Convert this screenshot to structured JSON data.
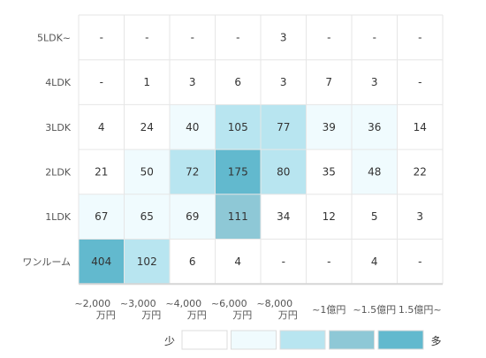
{
  "chart_data": {
    "type": "heatmap",
    "rows": [
      "5LDK~",
      "4LDK",
      "3LDK",
      "2LDK",
      "1LDK",
      "ワンルーム"
    ],
    "columns": [
      [
        "~2,000",
        "万円"
      ],
      [
        "~3,000",
        "万円"
      ],
      [
        "~4,000",
        "万円"
      ],
      [
        "~6,000",
        "万円"
      ],
      [
        "~8,000",
        "万円"
      ],
      [
        "~1億円"
      ],
      [
        "~1.5億円"
      ],
      [
        "1.5億円~"
      ]
    ],
    "values": [
      [
        "-",
        "-",
        "-",
        "-",
        "3",
        "-",
        "-",
        "-"
      ],
      [
        "-",
        "1",
        "3",
        "6",
        "3",
        "7",
        "3",
        "-"
      ],
      [
        "4",
        "24",
        "40",
        "105",
        "77",
        "39",
        "36",
        "14"
      ],
      [
        "21",
        "50",
        "72",
        "175",
        "80",
        "35",
        "48",
        "22"
      ],
      [
        "67",
        "65",
        "69",
        "111",
        "34",
        "12",
        "5",
        "3"
      ],
      [
        "404",
        "102",
        "6",
        "4",
        "-",
        "-",
        "4",
        "-"
      ]
    ],
    "levels": [
      [
        0,
        0,
        0,
        0,
        0,
        0,
        0,
        0
      ],
      [
        0,
        0,
        0,
        0,
        0,
        0,
        0,
        0
      ],
      [
        0,
        0,
        1,
        2,
        2,
        1,
        1,
        0
      ],
      [
        0,
        1,
        2,
        4,
        2,
        0,
        1,
        0
      ],
      [
        1,
        1,
        1,
        3,
        0,
        0,
        0,
        0
      ],
      [
        4,
        2,
        0,
        0,
        0,
        0,
        0,
        0
      ]
    ],
    "colors": [
      "#ffffff",
      "#f0fbfe",
      "#b8e5f0",
      "#8ec8d6",
      "#62b9ce"
    ],
    "legend": {
      "low_label": "少",
      "high_label": "多",
      "placement": "bottom-right"
    },
    "grid": true
  }
}
